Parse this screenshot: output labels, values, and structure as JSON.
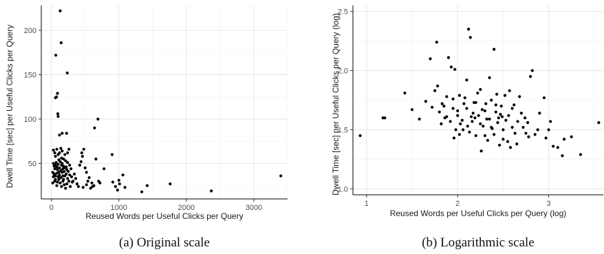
{
  "chart_data": [
    {
      "type": "scatter",
      "xlabel": "Reused Words per Useful Clicks per Query",
      "ylabel": "Dwell Time [sec] per Useful Clicks per Query",
      "caption": "(a) Original scale",
      "x_ticks": [
        0,
        1000,
        2000,
        3000
      ],
      "y_ticks": [
        50,
        100,
        150,
        200
      ],
      "xlim": [
        -150,
        3500
      ],
      "ylim": [
        10,
        228
      ],
      "grid": true,
      "point_color": "#000000",
      "points": [
        [
          130,
          222
        ],
        [
          145,
          186
        ],
        [
          65,
          172
        ],
        [
          235,
          152
        ],
        [
          90,
          129
        ],
        [
          75,
          125
        ],
        [
          60,
          124
        ],
        [
          95,
          106
        ],
        [
          100,
          103
        ],
        [
          160,
          84
        ],
        [
          225,
          84
        ],
        [
          120,
          82
        ],
        [
          640,
          90
        ],
        [
          690,
          100
        ],
        [
          30,
          65
        ],
        [
          50,
          62
        ],
        [
          60,
          58
        ],
        [
          80,
          66
        ],
        [
          100,
          60
        ],
        [
          140,
          67
        ],
        [
          160,
          64
        ],
        [
          180,
          55
        ],
        [
          200,
          60
        ],
        [
          240,
          62
        ],
        [
          260,
          66
        ],
        [
          30,
          50
        ],
        [
          40,
          47
        ],
        [
          50,
          44
        ],
        [
          60,
          48
        ],
        [
          70,
          51
        ],
        [
          80,
          46
        ],
        [
          90,
          43
        ],
        [
          100,
          49
        ],
        [
          110,
          54
        ],
        [
          120,
          45
        ],
        [
          130,
          52
        ],
        [
          140,
          42
        ],
        [
          150,
          48
        ],
        [
          160,
          50
        ],
        [
          170,
          44
        ],
        [
          180,
          47
        ],
        [
          190,
          41
        ],
        [
          200,
          45
        ],
        [
          210,
          53
        ],
        [
          220,
          46
        ],
        [
          230,
          43
        ],
        [
          250,
          41
        ],
        [
          270,
          48
        ],
        [
          290,
          44
        ],
        [
          20,
          40
        ],
        [
          40,
          38
        ],
        [
          60,
          36
        ],
        [
          80,
          39
        ],
        [
          100,
          35
        ],
        [
          120,
          37
        ],
        [
          140,
          34
        ],
        [
          160,
          40
        ],
        [
          180,
          32
        ],
        [
          200,
          36
        ],
        [
          220,
          38
        ],
        [
          240,
          33
        ],
        [
          260,
          30
        ],
        [
          300,
          35
        ],
        [
          320,
          30
        ],
        [
          340,
          38
        ],
        [
          360,
          33
        ],
        [
          380,
          27
        ],
        [
          20,
          28
        ],
        [
          50,
          30
        ],
        [
          80,
          25
        ],
        [
          110,
          32
        ],
        [
          130,
          28
        ],
        [
          150,
          24
        ],
        [
          170,
          30
        ],
        [
          190,
          26
        ],
        [
          210,
          22
        ],
        [
          230,
          27
        ],
        [
          280,
          24
        ],
        [
          310,
          29
        ],
        [
          420,
          48
        ],
        [
          440,
          52
        ],
        [
          450,
          62
        ],
        [
          460,
          58
        ],
        [
          480,
          66
        ],
        [
          500,
          45
        ],
        [
          520,
          40
        ],
        [
          540,
          30
        ],
        [
          560,
          34
        ],
        [
          600,
          28
        ],
        [
          630,
          25
        ],
        [
          660,
          55
        ],
        [
          700,
          30
        ],
        [
          720,
          28
        ],
        [
          780,
          44
        ],
        [
          900,
          60
        ],
        [
          910,
          29
        ],
        [
          950,
          24
        ],
        [
          980,
          20
        ],
        [
          1000,
          31
        ],
        [
          1010,
          27
        ],
        [
          1060,
          37
        ],
        [
          1090,
          23
        ],
        [
          1340,
          18
        ],
        [
          1420,
          25
        ],
        [
          1760,
          27
        ],
        [
          2370,
          19
        ],
        [
          3400,
          36
        ],
        [
          400,
          24
        ],
        [
          470,
          23
        ],
        [
          520,
          26
        ],
        [
          580,
          22
        ],
        [
          610,
          24
        ],
        [
          30,
          35
        ],
        [
          60,
          32
        ],
        [
          90,
          29
        ],
        [
          170,
          36
        ],
        [
          270,
          37
        ],
        [
          110,
          40
        ],
        [
          240,
          51
        ],
        [
          120,
          62
        ],
        [
          150,
          56
        ]
      ]
    },
    {
      "type": "scatter",
      "xlabel": "Reused Words per Useful Clicks per Query (log)",
      "ylabel": "Dwell Time [sec] per Useful Clicks per Query (log)",
      "caption": "(b) Logarithmic scale",
      "x_ticks": [
        1,
        2,
        3
      ],
      "x_tick_labels": [
        "1",
        "2",
        "3"
      ],
      "y_ticks": [
        1.0,
        1.5,
        2.0,
        2.5
      ],
      "y_tick_labels": [
        "1.0",
        "1.5",
        "2.0",
        "2.5"
      ],
      "xlim": [
        0.85,
        3.6
      ],
      "ylim": [
        0.95,
        2.55
      ],
      "grid": true,
      "point_color": "#000000",
      "points": [
        [
          0.93,
          1.45
        ],
        [
          1.18,
          1.6
        ],
        [
          1.2,
          1.6
        ],
        [
          1.42,
          1.81
        ],
        [
          1.5,
          1.67
        ],
        [
          1.58,
          1.59
        ],
        [
          1.65,
          1.74
        ],
        [
          1.7,
          2.1
        ],
        [
          1.72,
          1.69
        ],
        [
          1.75,
          1.83
        ],
        [
          1.77,
          2.24
        ],
        [
          1.78,
          1.87
        ],
        [
          1.8,
          1.65
        ],
        [
          1.82,
          1.55
        ],
        [
          1.85,
          1.7
        ],
        [
          1.88,
          1.61
        ],
        [
          1.9,
          2.11
        ],
        [
          1.93,
          2.03
        ],
        [
          1.95,
          1.76
        ],
        [
          1.96,
          1.43
        ],
        [
          1.97,
          2.01
        ],
        [
          1.98,
          1.5
        ],
        [
          2.0,
          1.66
        ],
        [
          2.02,
          1.79
        ],
        [
          2.05,
          1.58
        ],
        [
          2.07,
          1.72
        ],
        [
          2.1,
          1.92
        ],
        [
          2.12,
          2.35
        ],
        [
          2.14,
          2.28
        ],
        [
          2.15,
          1.61
        ],
        [
          2.17,
          1.64
        ],
        [
          2.2,
          1.73
        ],
        [
          2.22,
          1.81
        ],
        [
          2.25,
          1.55
        ],
        [
          2.27,
          1.67
        ],
        [
          2.3,
          1.45
        ],
        [
          2.32,
          1.59
        ],
        [
          2.35,
          1.94
        ],
        [
          2.37,
          1.52
        ],
        [
          2.4,
          2.18
        ],
        [
          2.42,
          1.71
        ],
        [
          2.45,
          1.6
        ],
        [
          2.47,
          1.63
        ],
        [
          2.5,
          1.5
        ],
        [
          2.52,
          1.79
        ],
        [
          2.55,
          1.4
        ],
        [
          2.57,
          1.83
        ],
        [
          2.6,
          1.52
        ],
        [
          2.62,
          1.71
        ],
        [
          2.65,
          1.38
        ],
        [
          2.7,
          1.64
        ],
        [
          2.75,
          1.47
        ],
        [
          2.77,
          1.56
        ],
        [
          2.8,
          1.95
        ],
        [
          2.82,
          2.0
        ],
        [
          2.85,
          1.46
        ],
        [
          2.9,
          1.64
        ],
        [
          2.95,
          1.77
        ],
        [
          2.97,
          1.43
        ],
        [
          3.0,
          1.5
        ],
        [
          3.02,
          1.57
        ],
        [
          3.05,
          1.36
        ],
        [
          3.1,
          1.35
        ],
        [
          3.15,
          1.28
        ],
        [
          3.17,
          1.42
        ],
        [
          3.25,
          1.44
        ],
        [
          3.35,
          1.29
        ],
        [
          3.55,
          1.56
        ],
        [
          1.88,
          1.78
        ],
        [
          1.92,
          1.57
        ],
        [
          2.0,
          1.62
        ],
        [
          2.03,
          1.55
        ],
        [
          2.06,
          1.5
        ],
        [
          2.08,
          1.77
        ],
        [
          2.1,
          1.68
        ],
        [
          2.13,
          1.48
        ],
        [
          2.16,
          1.57
        ],
        [
          2.18,
          1.73
        ],
        [
          2.2,
          1.45
        ],
        [
          2.23,
          1.62
        ],
        [
          2.25,
          1.84
        ],
        [
          2.28,
          1.53
        ],
        [
          2.3,
          1.66
        ],
        [
          2.33,
          1.41
        ],
        [
          2.35,
          1.59
        ],
        [
          2.37,
          1.75
        ],
        [
          2.4,
          1.46
        ],
        [
          2.42,
          1.65
        ],
        [
          2.44,
          1.56
        ],
        [
          2.46,
          1.37
        ],
        [
          2.48,
          1.7
        ],
        [
          2.5,
          1.42
        ],
        [
          2.53,
          1.58
        ],
        [
          2.56,
          1.62
        ],
        [
          2.58,
          1.35
        ],
        [
          2.6,
          1.68
        ],
        [
          2.63,
          1.47
        ],
        [
          2.66,
          1.57
        ],
        [
          2.68,
          1.78
        ],
        [
          2.72,
          1.52
        ],
        [
          2.74,
          1.6
        ],
        [
          2.78,
          1.44
        ],
        [
          2.88,
          1.5
        ],
        [
          1.83,
          1.72
        ],
        [
          1.86,
          1.6
        ],
        [
          1.95,
          1.68
        ],
        [
          2.02,
          1.46
        ],
        [
          2.11,
          1.53
        ],
        [
          2.19,
          1.6
        ],
        [
          2.26,
          1.32
        ],
        [
          2.31,
          1.72
        ],
        [
          2.38,
          1.51
        ],
        [
          2.43,
          1.8
        ],
        [
          2.49,
          1.61
        ]
      ]
    }
  ]
}
